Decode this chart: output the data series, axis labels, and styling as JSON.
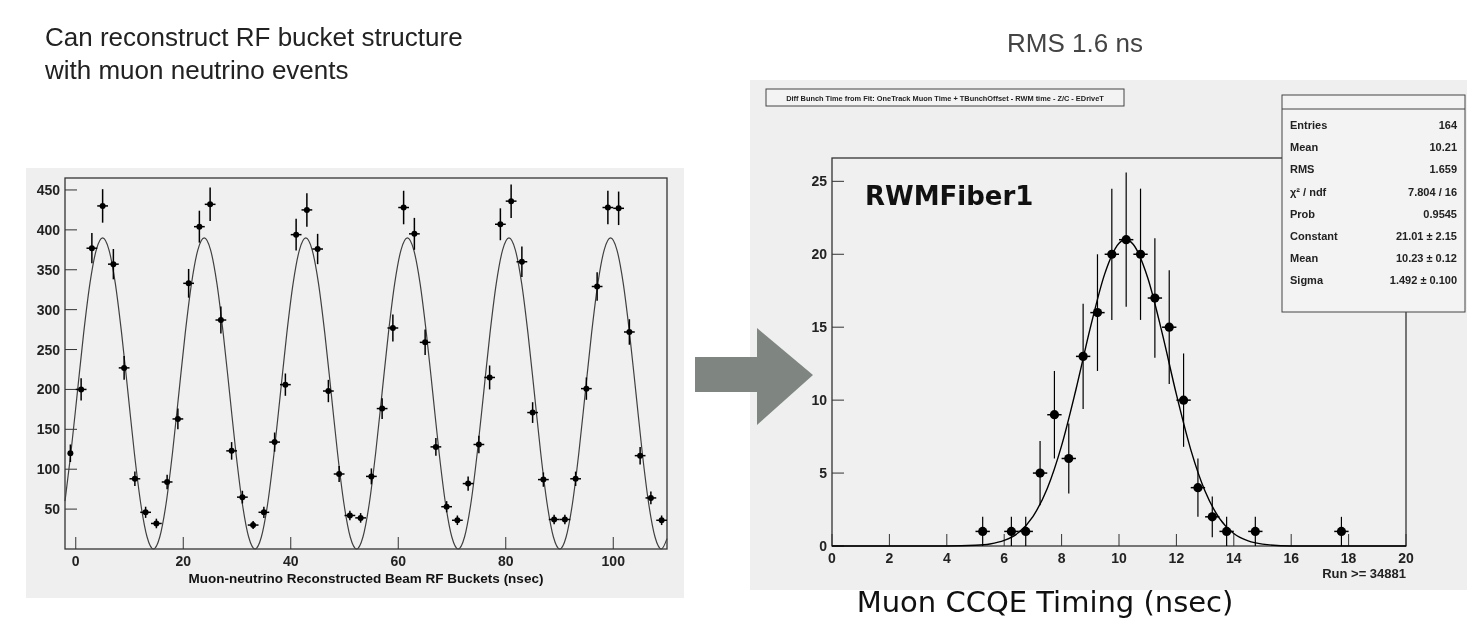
{
  "chart_data": [
    {
      "type": "scatter",
      "title": "Can reconstruct RF bucket structure with muon neutrino events",
      "xlabel": "Muon-neutrino Reconstructed Beam RF Buckets (nsec)",
      "xlim": [
        -2,
        110
      ],
      "xticks": [
        0,
        20,
        40,
        60,
        80,
        100
      ],
      "ylim": [
        0,
        465
      ],
      "yticks": [
        50,
        100,
        150,
        200,
        250,
        300,
        350,
        400,
        450
      ],
      "series": [
        {
          "type": "scatter",
          "marker": "circle",
          "color": "#000000",
          "x": [
            -1,
            1,
            3,
            5,
            7,
            9,
            11,
            13,
            15,
            17,
            19,
            21,
            23,
            25,
            27,
            29,
            31,
            33,
            35,
            37,
            39,
            41,
            43,
            45,
            47,
            49,
            51,
            53,
            55,
            57,
            59,
            61,
            63,
            65,
            67,
            69,
            71,
            73,
            75,
            77,
            79,
            81,
            83,
            85,
            87,
            89,
            91,
            93,
            95,
            97,
            99,
            101,
            103,
            105,
            107,
            109
          ],
          "values": [
            120,
            200,
            377,
            430,
            357,
            227,
            88,
            46,
            32,
            84,
            163,
            333,
            404,
            432,
            287,
            123,
            65,
            30,
            46,
            134,
            206,
            394,
            425,
            376,
            198,
            94,
            42,
            39,
            91,
            176,
            277,
            428,
            395,
            259,
            128,
            53,
            36,
            82,
            131,
            215,
            407,
            436,
            360,
            171,
            87,
            37,
            37,
            88,
            201,
            329,
            428,
            427,
            272,
            117,
            64,
            36
          ],
          "errors": [
            11,
            14,
            19,
            21,
            19,
            15,
            9,
            7,
            6,
            9,
            13,
            18,
            20,
            21,
            17,
            11,
            8,
            5,
            7,
            12,
            14,
            20,
            21,
            19,
            14,
            10,
            6,
            6,
            10,
            13,
            17,
            21,
            20,
            16,
            11,
            7,
            6,
            9,
            11,
            15,
            20,
            21,
            19,
            13,
            9,
            6,
            6,
            9,
            14,
            18,
            21,
            21,
            16,
            11,
            8,
            6
          ],
          "xerrors": [
            null,
            1,
            1,
            1,
            1,
            1,
            1,
            1,
            1,
            1,
            1,
            1,
            1,
            1,
            1,
            1,
            1,
            1,
            1,
            1,
            1,
            1,
            1,
            1,
            1,
            1,
            1,
            1,
            1,
            1,
            1,
            1,
            1,
            1,
            1,
            1,
            1,
            1,
            1,
            1,
            1,
            1,
            1,
            1,
            1,
            1,
            1,
            1,
            1,
            1,
            1,
            1,
            1,
            1,
            1,
            1
          ]
        },
        {
          "type": "line",
          "color": "#404040",
          "x": [
            -2,
            -0.91,
            0.28,
            1.46,
            2.64,
            3.82,
            5,
            6.18,
            7.36,
            8.54,
            9.73,
            10.91,
            12.09,
            13.27,
            14.45,
            15.63,
            16.81,
            17.99,
            19.18,
            20.36,
            21.54,
            22.72,
            23.9,
            25.08,
            26.26,
            27.44,
            28.63,
            29.81,
            30.99,
            32.17,
            33.35,
            34.53,
            35.71,
            36.89,
            38.08,
            39.26,
            40.44,
            41.62,
            42.8,
            43.98,
            45.16,
            46.34,
            47.53,
            48.71,
            49.89,
            51.07,
            52.25,
            53.43,
            54.61,
            55.79,
            56.98,
            58.16,
            59.34,
            60.52,
            61.7,
            62.88,
            64.06,
            65.24,
            66.43,
            67.61,
            68.79,
            69.97,
            71.15,
            72.33,
            73.51,
            74.69,
            75.88,
            77.06,
            78.24,
            79.42,
            80.6,
            81.78,
            82.96,
            84.14,
            85.33,
            86.51,
            87.69,
            88.87,
            90.05,
            91.23,
            92.41,
            93.59,
            94.78,
            95.96,
            97.14,
            98.32,
            99.5,
            100.68,
            101.86,
            103.04,
            104.23,
            105.41,
            106.59,
            107.77,
            108.95,
            110
          ],
          "values": [
            60,
            120,
            195,
            270,
            333,
            375,
            390,
            375,
            333,
            270,
            195,
            120,
            57,
            15,
            0,
            15,
            57,
            120,
            195,
            270,
            333,
            375,
            390,
            375,
            333,
            270,
            195,
            120,
            57,
            15,
            0,
            15,
            57,
            120,
            195,
            270,
            333,
            375,
            390,
            375,
            333,
            270,
            195,
            120,
            57,
            15,
            0,
            15,
            57,
            120,
            195,
            270,
            333,
            375,
            390,
            375,
            333,
            270,
            195,
            120,
            57,
            15,
            0,
            15,
            57,
            120,
            195,
            270,
            333,
            375,
            390,
            375,
            333,
            270,
            195,
            120,
            57,
            15,
            0,
            15,
            57,
            120,
            195,
            270,
            333,
            375,
            390,
            375,
            333,
            270,
            195,
            120,
            57,
            15,
            0,
            13
          ]
        }
      ]
    },
    {
      "type": "scatter",
      "title": "Diff Bunch Time from Fit: OneTrack Muon Time + TBunchOffset - RWM time - Z/C - EDriveT",
      "subtitle": "RMS 1.6 ns",
      "xlabel": "Muon CCQE Timing (nsec)",
      "xlim": [
        0,
        20
      ],
      "xticks": [
        0,
        2,
        4,
        6,
        8,
        10,
        12,
        14,
        16,
        18,
        20
      ],
      "ylim": [
        0,
        26.6
      ],
      "yticks": [
        0,
        5,
        10,
        15,
        20,
        25
      ],
      "annotations": [
        "RWMFiber1",
        "Run >= 34881",
        "Entries",
        "164",
        "Mean",
        "10.21",
        "RMS",
        "1.659",
        "χ² / ndf",
        "7.804 / 16",
        "Prob",
        "0.9545",
        "Constant",
        "21.01 ± 2.15",
        "Mean",
        "10.23 ± 0.12",
        "Sigma",
        "1.492 ± 0.100"
      ],
      "series": [
        {
          "type": "scatter",
          "marker": "circle",
          "color": "#000000",
          "x": [
            5.25,
            6.25,
            6.75,
            7.25,
            7.75,
            8.25,
            8.75,
            9.25,
            9.75,
            10.25,
            10.75,
            11.25,
            11.75,
            12.25,
            12.75,
            13.25,
            13.75,
            14.75,
            17.75
          ],
          "values": [
            1,
            1,
            1,
            5,
            9,
            6,
            13,
            16,
            20,
            21,
            20,
            17,
            15,
            10,
            4,
            2,
            1,
            1,
            1
          ],
          "errors": [
            1,
            1,
            1,
            2.2,
            3,
            2.4,
            3.6,
            4,
            4.5,
            4.6,
            4.5,
            4.1,
            3.9,
            3.2,
            2,
            1.4,
            1,
            1,
            1
          ],
          "xerrors": [
            0.25,
            0.25,
            0.25,
            0.25,
            0.25,
            0.25,
            0.25,
            0.25,
            0.25,
            0.25,
            0.25,
            0.25,
            0.25,
            0.25,
            0.25,
            0.25,
            0.25,
            0.25,
            0.25
          ]
        },
        {
          "type": "line",
          "color": "#000000",
          "x": [
            0,
            4,
            5,
            5.5,
            6,
            6.5,
            7,
            7.5,
            8,
            8.5,
            9,
            9.5,
            10,
            10.23,
            10.5,
            11,
            11.5,
            12,
            12.5,
            13,
            13.5,
            14,
            14.5,
            15,
            16,
            20
          ],
          "values": [
            0,
            0,
            0.05,
            0.14,
            0.38,
            0.92,
            2.02,
            3.94,
            6.88,
            10.73,
            14.95,
            18.64,
            20.76,
            21.01,
            20.67,
            18.39,
            14.63,
            10.39,
            6.61,
            3.75,
            1.9,
            0.86,
            0.35,
            0.13,
            0,
            0
          ]
        }
      ]
    }
  ]
}
